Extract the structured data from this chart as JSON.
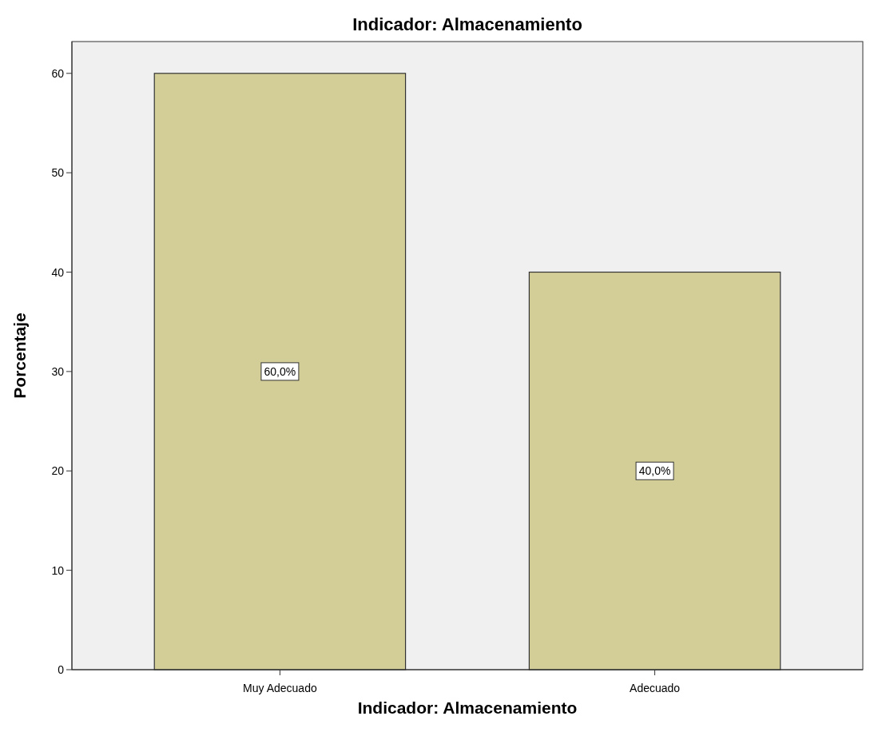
{
  "chart_data": {
    "type": "bar",
    "title": "Indicador: Almacenamiento",
    "xlabel": "Indicador: Almacenamiento",
    "ylabel": "Porcentaje",
    "categories": [
      "Muy Adecuado",
      "Adecuado"
    ],
    "values": [
      60,
      40
    ],
    "color": "#d3ce97",
    "value_labels": [
      "60,0%",
      "40,0%"
    ],
    "ylim": [
      0,
      63.2
    ],
    "yticks": [
      0,
      10,
      20,
      30,
      40,
      50,
      60
    ],
    "grid": false
  }
}
